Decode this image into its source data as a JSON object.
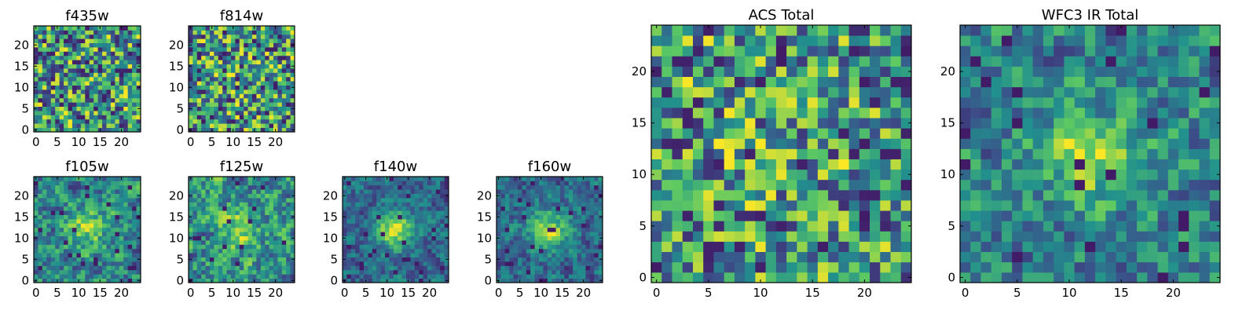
{
  "figure": {
    "colormap": "viridis",
    "colormap_stops": [
      "#440154",
      "#3b528b",
      "#21908d",
      "#5dc963",
      "#fde725"
    ]
  },
  "chart_data": [
    {
      "type": "heatmap",
      "title": "f435w",
      "grid_size": 25,
      "xlim": [
        0,
        24
      ],
      "ylim": [
        0,
        24
      ],
      "xticks": [
        0,
        5,
        10,
        15,
        20
      ],
      "yticks": [
        0,
        5,
        10,
        15,
        20
      ],
      "central_source_strength": 0.0,
      "seed": 11,
      "appearance": "uniform noise, no central source"
    },
    {
      "type": "heatmap",
      "title": "f814w",
      "grid_size": 25,
      "xlim": [
        0,
        24
      ],
      "ylim": [
        0,
        24
      ],
      "xticks": [
        0,
        5,
        10,
        15,
        20
      ],
      "yticks": [
        0,
        5,
        10,
        15,
        20
      ],
      "central_source_strength": 0.05,
      "seed": 23,
      "appearance": "noise, very faint center"
    },
    {
      "type": "heatmap",
      "title": "f105w",
      "grid_size": 25,
      "xlim": [
        0,
        24
      ],
      "ylim": [
        0,
        24
      ],
      "xticks": [
        0,
        5,
        10,
        15,
        20
      ],
      "yticks": [
        0,
        5,
        10,
        15,
        20
      ],
      "central_source_strength": 0.35,
      "seed": 37,
      "appearance": "smoothed noise, bright blob near (12,12)"
    },
    {
      "type": "heatmap",
      "title": "f125w",
      "grid_size": 25,
      "xlim": [
        0,
        24
      ],
      "ylim": [
        0,
        24
      ],
      "xticks": [
        0,
        5,
        10,
        15,
        20
      ],
      "yticks": [
        0,
        5,
        10,
        15,
        20
      ],
      "central_source_strength": 0.3,
      "seed": 41,
      "appearance": "smoothed noise, faint central source"
    },
    {
      "type": "heatmap",
      "title": "f140w",
      "grid_size": 25,
      "xlim": [
        0,
        24
      ],
      "ylim": [
        0,
        24
      ],
      "xticks": [
        0,
        5,
        10,
        15,
        20
      ],
      "yticks": [
        0,
        5,
        10,
        15,
        20
      ],
      "central_source_strength": 0.6,
      "seed": 53,
      "appearance": "clear bright central source near (12,12)"
    },
    {
      "type": "heatmap",
      "title": "f160w",
      "grid_size": 25,
      "xlim": [
        0,
        24
      ],
      "ylim": [
        0,
        24
      ],
      "xticks": [
        0,
        5,
        10,
        15,
        20
      ],
      "yticks": [
        0,
        5,
        10,
        15,
        20
      ],
      "central_source_strength": 0.55,
      "seed": 67,
      "appearance": "bright central source near (12,12)"
    },
    {
      "type": "heatmap",
      "title": "ACS Total",
      "grid_size": 25,
      "xlim": [
        0,
        24
      ],
      "ylim": [
        0,
        24
      ],
      "xticks": [
        0,
        5,
        10,
        15,
        20
      ],
      "yticks": [
        0,
        5,
        10,
        15,
        20
      ],
      "central_source_strength": 0.05,
      "seed": 71,
      "appearance": "blocky noise, no obvious source"
    },
    {
      "type": "heatmap",
      "title": "WFC3 IR Total",
      "grid_size": 25,
      "xlim": [
        0,
        24
      ],
      "ylim": [
        0,
        24
      ],
      "xticks": [
        0,
        5,
        10,
        15,
        20
      ],
      "yticks": [
        0,
        5,
        10,
        15,
        20
      ],
      "central_source_strength": 0.4,
      "seed": 89,
      "appearance": "blocky noise, bright source near (12,13)"
    }
  ]
}
